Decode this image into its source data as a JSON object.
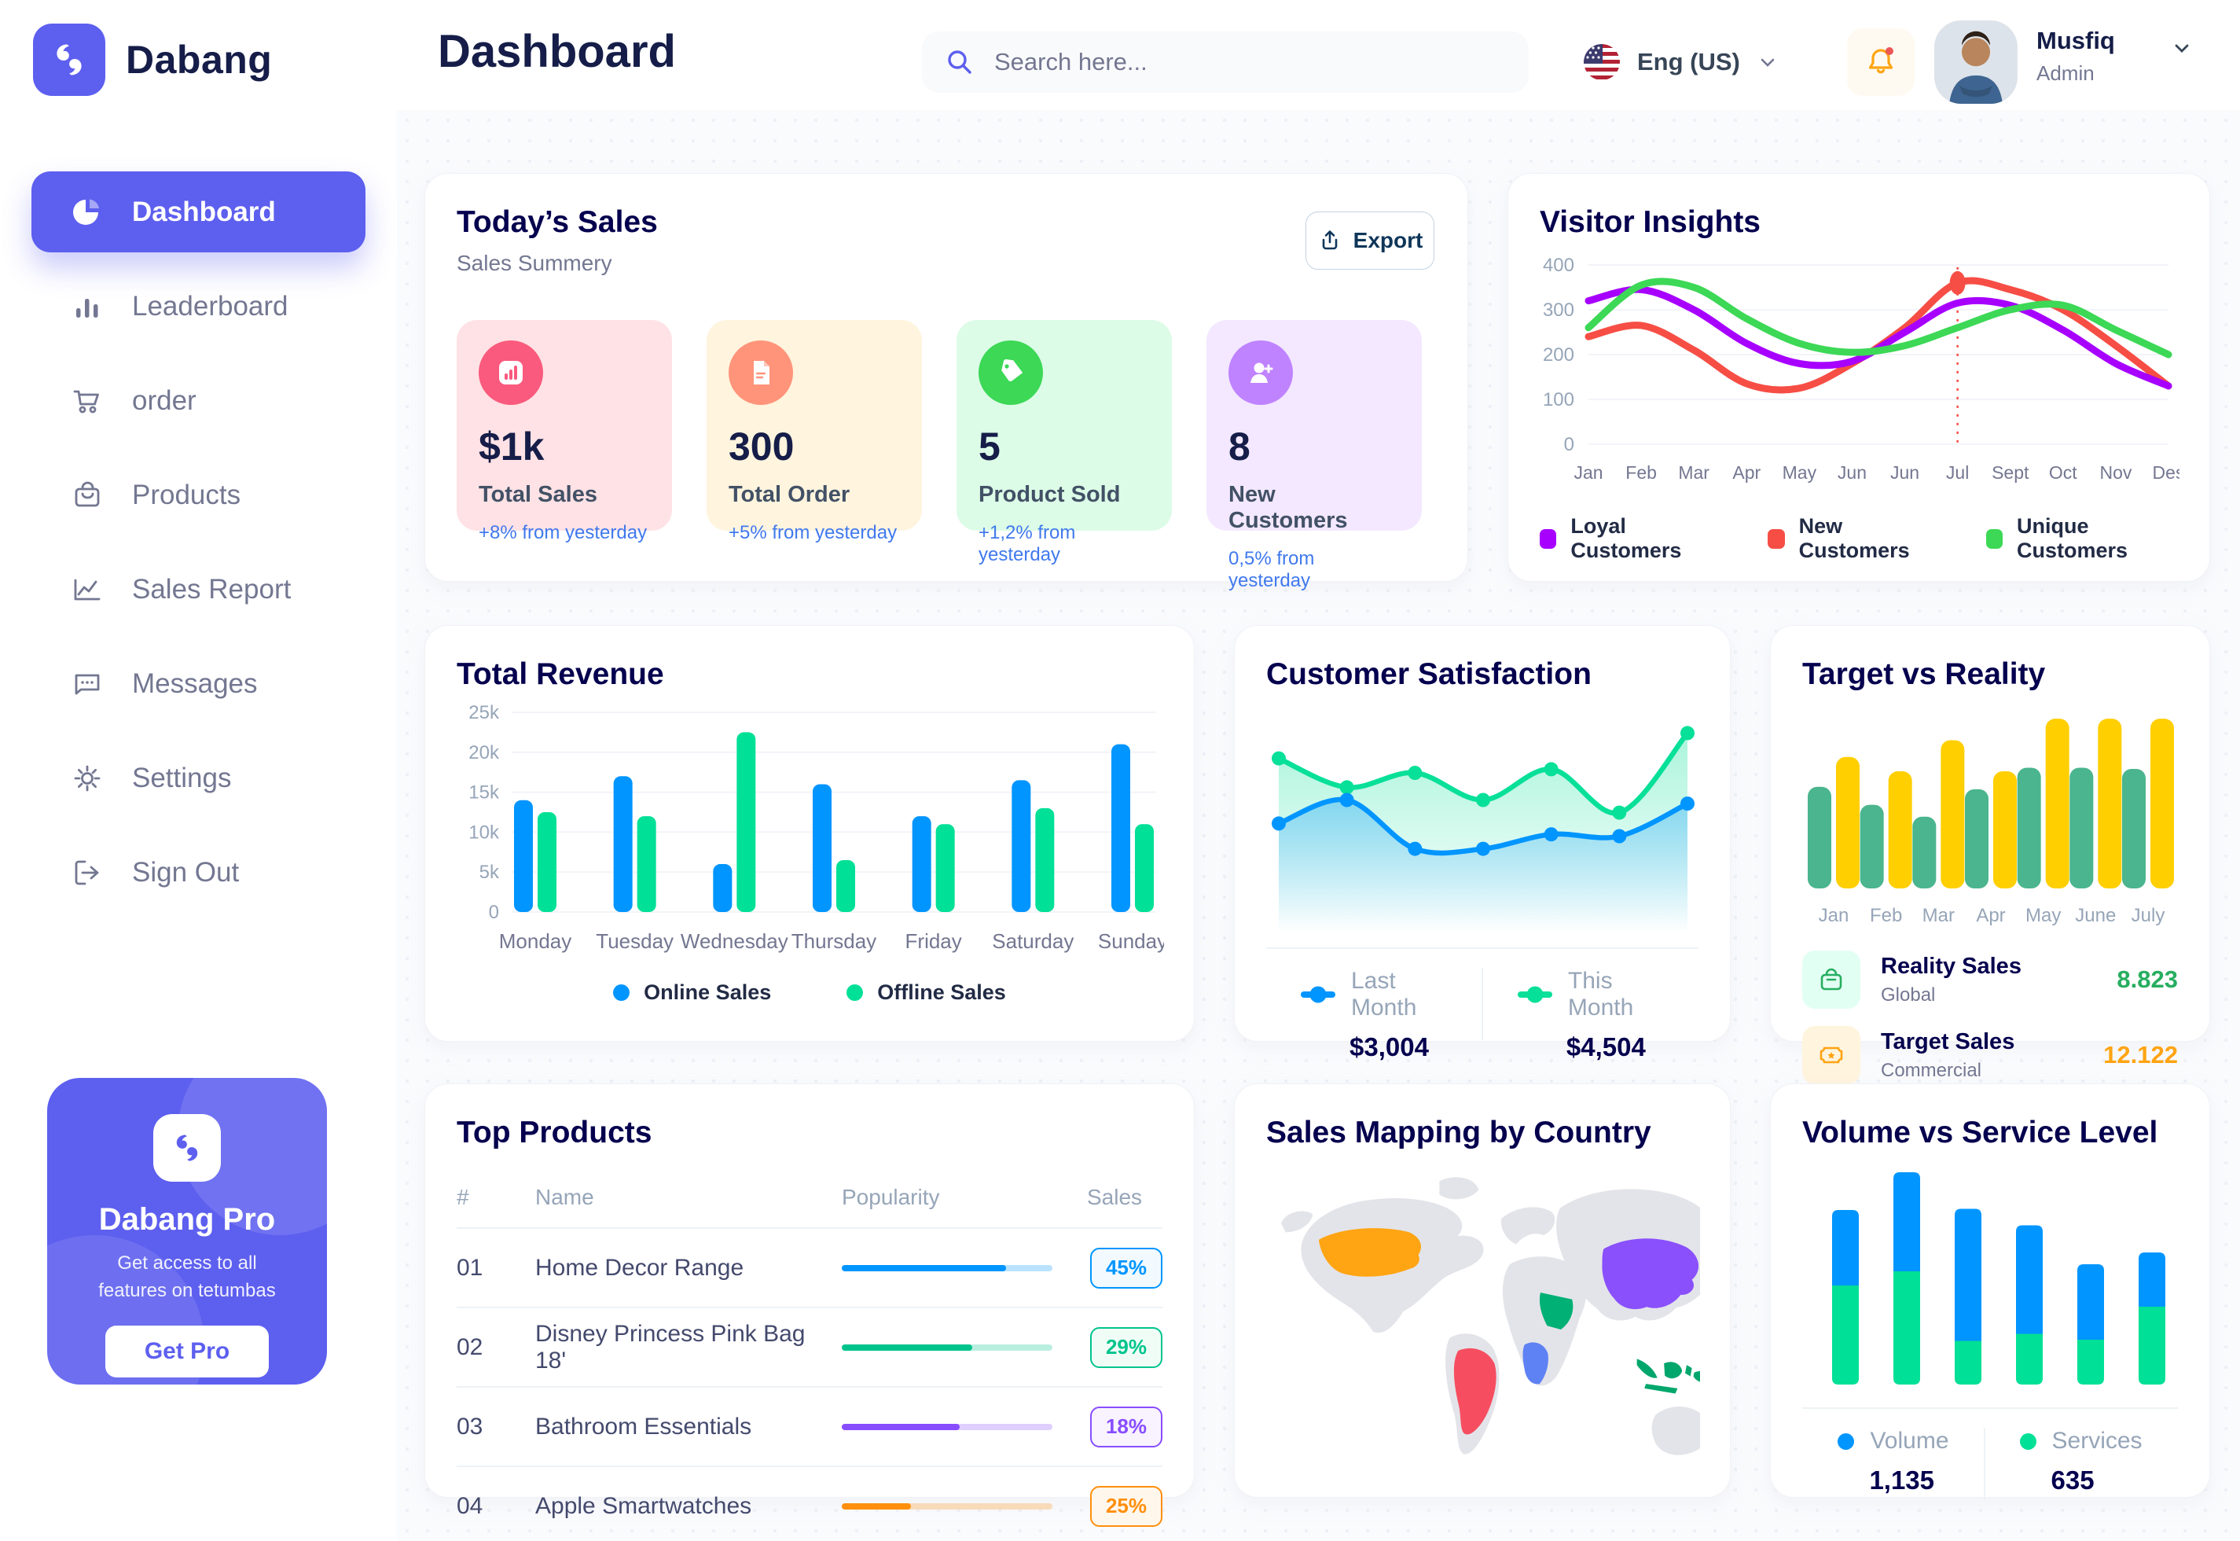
{
  "brand": {
    "name": "Dabang",
    "accent_color": "#5D5FEF"
  },
  "header": {
    "title": "Dashboard",
    "search_placeholder": "Search here...",
    "language": "Eng (US)",
    "notification": {
      "icon": "bell-icon",
      "has_unread": true
    },
    "user": {
      "name": "Musfiq",
      "role": "Admin"
    }
  },
  "sidebar": {
    "items": [
      {
        "id": "dashboard",
        "label": "Dashboard",
        "icon": "pie-chart-icon",
        "active": true
      },
      {
        "id": "leaderboard",
        "label": "Leaderboard",
        "icon": "bar-chart-icon",
        "active": false
      },
      {
        "id": "order",
        "label": "order",
        "icon": "cart-icon",
        "active": false
      },
      {
        "id": "products",
        "label": "Products",
        "icon": "bag-icon",
        "active": false
      },
      {
        "id": "sales-report",
        "label": "Sales Report",
        "icon": "line-chart-icon",
        "active": false
      },
      {
        "id": "messages",
        "label": "Messages",
        "icon": "chat-icon",
        "active": false
      },
      {
        "id": "settings",
        "label": "Settings",
        "icon": "gear-icon",
        "active": false
      },
      {
        "id": "sign-out",
        "label": "Sign Out",
        "icon": "logout-icon",
        "active": false
      }
    ],
    "pro_card": {
      "title": "Dabang Pro",
      "subtitle": "Get access to all features on tetumbas",
      "cta": "Get Pro"
    }
  },
  "today_sales": {
    "title": "Today’s Sales",
    "subtitle": "Sales Summery",
    "export_label": "Export",
    "delta_color": "#4079ED",
    "cards": [
      {
        "value": "$1k",
        "label": "Total Sales",
        "delta": "+8% from yesterday",
        "bg": "#FFE2E5",
        "icon_bg": "#FA5A7D",
        "icon": "mini-chart-icon"
      },
      {
        "value": "300",
        "label": "Total Order",
        "delta": "+5% from yesterday",
        "bg": "#FFF4DE",
        "icon_bg": "#FF947A",
        "icon": "file-icon"
      },
      {
        "value": "5",
        "label": "Product Sold",
        "delta": "+1,2% from yesterday",
        "bg": "#DCFCE7",
        "icon_bg": "#3CD856",
        "icon": "tag-icon"
      },
      {
        "value": "8",
        "label": "New Customers",
        "delta": "0,5% from yesterday",
        "bg": "#F3E8FF",
        "icon_bg": "#BF83FF",
        "icon": "user-plus-icon"
      }
    ]
  },
  "chart_data": [
    {
      "id": "visitor_insights",
      "type": "line",
      "title": "Visitor Insights",
      "x": [
        "Jan",
        "Feb",
        "Mar",
        "Apr",
        "May",
        "Jun",
        "Jun",
        "Jul",
        "Sept",
        "Oct",
        "Nov",
        "Des"
      ],
      "ylim": [
        0,
        400
      ],
      "yticks": [
        0,
        100,
        200,
        300,
        400
      ],
      "grid": true,
      "legend_position": "bottom",
      "series": [
        {
          "name": "Loyal Customers",
          "color": "#A700FF",
          "values": [
            320,
            345,
            300,
            225,
            180,
            185,
            250,
            315,
            310,
            255,
            180,
            130
          ]
        },
        {
          "name": "New Customers",
          "color": "#F64E45",
          "values": [
            240,
            265,
            210,
            135,
            125,
            180,
            260,
            360,
            345,
            300,
            220,
            130
          ]
        },
        {
          "name": "Unique Customers",
          "color": "#3CD856",
          "values": [
            260,
            355,
            350,
            280,
            225,
            205,
            220,
            260,
            300,
            310,
            255,
            200
          ]
        }
      ],
      "annotation": {
        "x_index": 7,
        "x_label": "Jul",
        "marker_series": "New Customers",
        "marker_value": 360,
        "line_color": "#F64E45"
      }
    },
    {
      "id": "total_revenue",
      "type": "bar",
      "title": "Total Revenue",
      "categories": [
        "Monday",
        "Tuesday",
        "Wednesday",
        "Thursday",
        "Friday",
        "Saturday",
        "Sunday"
      ],
      "ylim": [
        0,
        25
      ],
      "ytick_labels": [
        "0",
        "5k",
        "10k",
        "15k",
        "20k",
        "25k"
      ],
      "ytick_values": [
        0,
        5,
        10,
        15,
        20,
        25
      ],
      "grid": true,
      "legend_position": "bottom",
      "series": [
        {
          "name": "Online Sales",
          "color": "#0095FF",
          "values": [
            14,
            17,
            6,
            16,
            12,
            16.5,
            21
          ]
        },
        {
          "name": "Offline Sales",
          "color": "#00E096",
          "values": [
            12.5,
            12,
            22.5,
            6.5,
            11,
            13,
            11
          ]
        }
      ]
    },
    {
      "id": "customer_satisfaction",
      "type": "area",
      "title": "Customer Satisfaction",
      "ylim": [
        0,
        100
      ],
      "grid": false,
      "legend_position": "bottom",
      "series": [
        {
          "name": "Last Month",
          "color": "#0095FF",
          "total": "$3,004",
          "values": [
            42,
            55,
            28,
            28,
            36,
            35,
            53
          ]
        },
        {
          "name": "This Month",
          "color": "#07E098",
          "total": "$4,504",
          "values": [
            78,
            62,
            70,
            55,
            72,
            48,
            92
          ]
        }
      ]
    },
    {
      "id": "target_vs_reality",
      "type": "bar",
      "title": "Target vs Reality",
      "categories": [
        "Jan",
        "Feb",
        "Mar",
        "Apr",
        "May",
        "June",
        "July"
      ],
      "ylim": [
        0,
        15
      ],
      "grid": false,
      "series": [
        {
          "name": "Reality Sales",
          "color": "#4AB58E",
          "values": [
            8.5,
            7,
            6,
            8.3,
            10.1,
            10.1,
            10
          ]
        },
        {
          "name": "Target Sales",
          "color": "#FFCF00",
          "values": [
            11,
            9.8,
            12.4,
            9.8,
            14.2,
            14.2,
            14.2
          ]
        }
      ],
      "summary": [
        {
          "label": "Reality Sales",
          "sublabel": "Global",
          "value": "8.823",
          "value_color": "#27AE60",
          "icon": "shopping-bag-icon",
          "icon_bg": "#E2FFF3"
        },
        {
          "label": "Target Sales",
          "sublabel": "Commercial",
          "value": "12.122",
          "value_color": "#FFA412",
          "icon": "ticket-icon",
          "icon_bg": "#FFF4DE"
        }
      ]
    },
    {
      "id": "volume_vs_service",
      "type": "stacked_bar",
      "title": "Volume vs Service Level",
      "ylim": [
        0,
        900
      ],
      "grid": false,
      "legend_position": "bottom",
      "series": [
        {
          "name": "Volume",
          "color": "#0095FF",
          "total": "1,135",
          "values": [
            320,
            420,
            560,
            460,
            320,
            230
          ]
        },
        {
          "name": "Services",
          "color": "#00E096",
          "total": "635",
          "values": [
            420,
            480,
            185,
            215,
            190,
            330
          ]
        }
      ]
    }
  ],
  "top_products": {
    "title": "Top Products",
    "columns": [
      "#",
      "Name",
      "Popularity",
      "Sales"
    ],
    "rows": [
      {
        "num": "01",
        "name": "Home Decor Range",
        "popularity": 0.78,
        "sales": "45%",
        "color": "#0095FF",
        "badge_bg": "#F2F9FF"
      },
      {
        "num": "02",
        "name": "Disney Princess Pink Bag 18'",
        "popularity": 0.62,
        "sales": "29%",
        "color": "#00C48C",
        "badge_bg": "#F0FDF7"
      },
      {
        "num": "03",
        "name": "Bathroom Essentials",
        "popularity": 0.56,
        "sales": "18%",
        "color": "#884DFF",
        "badge_bg": "#F8F3FF"
      },
      {
        "num": "04",
        "name": "Apple Smartwatches",
        "popularity": 0.33,
        "sales": "25%",
        "color": "#FF8F0D",
        "badge_bg": "#FFF7EC"
      }
    ]
  },
  "sales_map": {
    "title": "Sales Mapping by Country",
    "countries": [
      {
        "name": "United States",
        "color": "#FFA412"
      },
      {
        "name": "Brazil",
        "color": "#F64E60"
      },
      {
        "name": "Saudi Arabia",
        "color": "#00B074"
      },
      {
        "name": "DR Congo",
        "color": "#5E81F4"
      },
      {
        "name": "China",
        "color": "#8950FC"
      },
      {
        "name": "Indonesia",
        "color": "#00A66C"
      }
    ]
  }
}
